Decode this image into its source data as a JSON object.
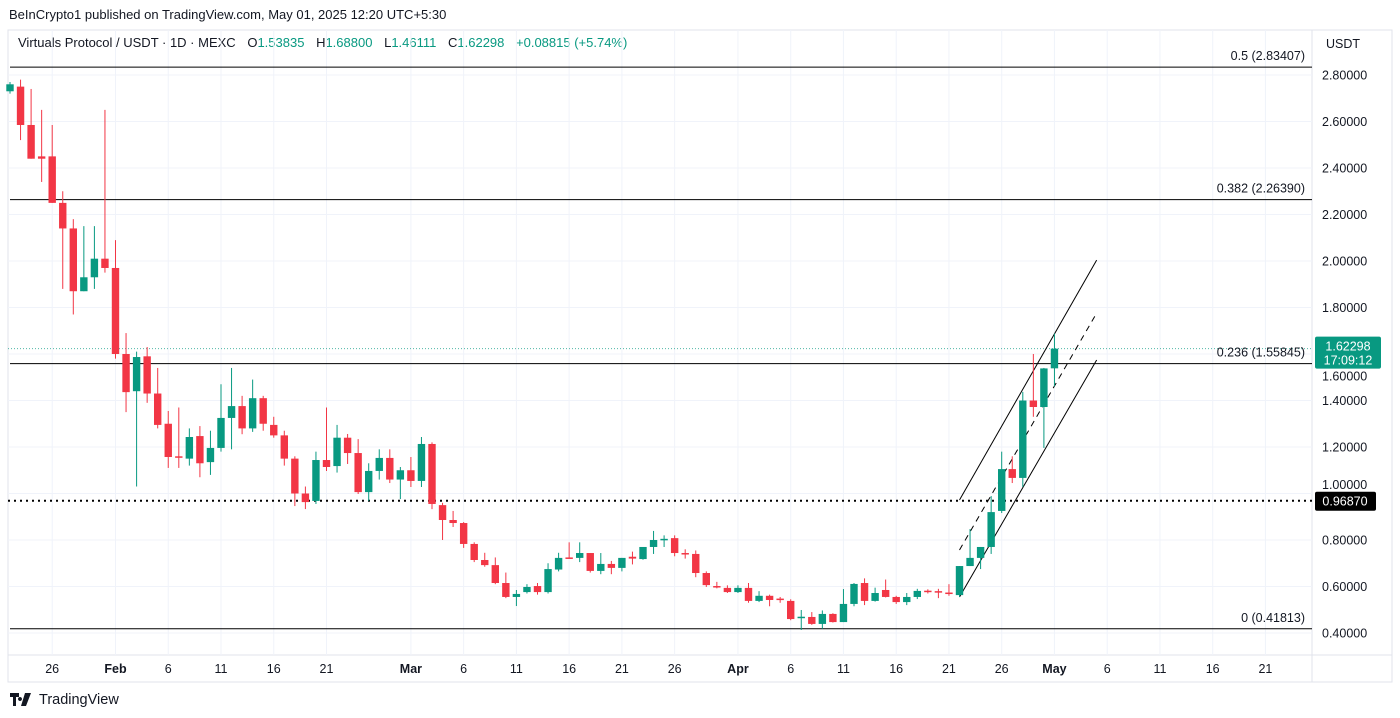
{
  "header": {
    "publisher_line": "BeInCrypto1 published on TradingView.com, May 01, 2025 12:20 UTC+5:30",
    "symbol": "Virtuals Protocol / USDT · 1D · MEXC",
    "open_label": "O",
    "open": "1.53835",
    "high_label": "H",
    "high": "1.68800",
    "low_label": "L",
    "low": "1.46111",
    "close_label": "C",
    "close": "1.62298",
    "change": "+0.08815 (+5.74%)",
    "currency": "USDT"
  },
  "footer": {
    "brand": "TradingView"
  },
  "colors": {
    "up": "#089981",
    "down": "#F23645",
    "last_price_bg": "#089981",
    "marker_bg": "#000000",
    "grid": "#f0f3fa"
  },
  "chart_data": {
    "type": "candlestick",
    "title": "",
    "xlabel": "",
    "ylabel": "",
    "ylim": [
      0.4,
      2.8
    ],
    "grid": true,
    "y_ticks": [
      "2.80000",
      "2.60000",
      "2.40000",
      "2.20000",
      "2.00000",
      "1.80000",
      "1.60000",
      "1.40000",
      "1.20000",
      "1.00000",
      "0.80000",
      "0.60000",
      "0.40000"
    ],
    "x_ticks": [
      {
        "date": "2025-01-26",
        "label": "26"
      },
      {
        "date": "2025-02-01",
        "label": "Feb",
        "month": true
      },
      {
        "date": "2025-02-06",
        "label": "6"
      },
      {
        "date": "2025-02-11",
        "label": "11"
      },
      {
        "date": "2025-02-16",
        "label": "16"
      },
      {
        "date": "2025-02-21",
        "label": "21"
      },
      {
        "date": "2025-03-01",
        "label": "Mar",
        "month": true
      },
      {
        "date": "2025-03-06",
        "label": "6"
      },
      {
        "date": "2025-03-11",
        "label": "11"
      },
      {
        "date": "2025-03-16",
        "label": "16"
      },
      {
        "date": "2025-03-21",
        "label": "21"
      },
      {
        "date": "2025-03-26",
        "label": "26"
      },
      {
        "date": "2025-04-01",
        "label": "Apr",
        "month": true
      },
      {
        "date": "2025-04-06",
        "label": "6"
      },
      {
        "date": "2025-04-11",
        "label": "11"
      },
      {
        "date": "2025-04-16",
        "label": "16"
      },
      {
        "date": "2025-04-21",
        "label": "21"
      },
      {
        "date": "2025-04-26",
        "label": "26"
      },
      {
        "date": "2025-05-01",
        "label": "May",
        "month": true
      },
      {
        "date": "2025-05-06",
        "label": "6"
      },
      {
        "date": "2025-05-11",
        "label": "11"
      },
      {
        "date": "2025-05-16",
        "label": "16"
      },
      {
        "date": "2025-05-21",
        "label": "21"
      }
    ],
    "ohlc_fields": [
      "date",
      "open",
      "high",
      "low",
      "close"
    ],
    "candles": [
      [
        "2025-01-22",
        2.73,
        2.77,
        2.72,
        2.76
      ],
      [
        "2025-01-23",
        2.75,
        2.78,
        2.52,
        2.585
      ],
      [
        "2025-01-24",
        2.585,
        2.74,
        2.44,
        2.44
      ],
      [
        "2025-01-25",
        2.45,
        2.65,
        2.34,
        2.44
      ],
      [
        "2025-01-26",
        2.45,
        2.585,
        2.25,
        2.25
      ],
      [
        "2025-01-27",
        2.25,
        2.3,
        1.88,
        2.14
      ],
      [
        "2025-01-28",
        2.14,
        2.18,
        1.77,
        1.87
      ],
      [
        "2025-01-29",
        1.87,
        2.15,
        1.87,
        1.93
      ],
      [
        "2025-01-30",
        1.93,
        2.15,
        1.88,
        2.01
      ],
      [
        "2025-01-31",
        2.01,
        2.65,
        1.95,
        1.97
      ],
      [
        "2025-02-01",
        1.97,
        2.09,
        1.58,
        1.6
      ],
      [
        "2025-02-02",
        1.6,
        1.69,
        1.35,
        1.436
      ],
      [
        "2025-02-03",
        1.44,
        1.61,
        1.03,
        1.587
      ],
      [
        "2025-02-04",
        1.59,
        1.63,
        1.39,
        1.43
      ],
      [
        "2025-02-05",
        1.43,
        1.54,
        1.28,
        1.295
      ],
      [
        "2025-02-06",
        1.3,
        1.355,
        1.11,
        1.157
      ],
      [
        "2025-02-07",
        1.16,
        1.37,
        1.11,
        1.155
      ],
      [
        "2025-02-08",
        1.15,
        1.28,
        1.12,
        1.243
      ],
      [
        "2025-02-09",
        1.247,
        1.29,
        1.07,
        1.13
      ],
      [
        "2025-02-10",
        1.135,
        1.27,
        1.08,
        1.196
      ],
      [
        "2025-02-11",
        1.196,
        1.47,
        1.18,
        1.325
      ],
      [
        "2025-02-12",
        1.325,
        1.54,
        1.19,
        1.376
      ],
      [
        "2025-02-13",
        1.376,
        1.42,
        1.255,
        1.28
      ],
      [
        "2025-02-14",
        1.28,
        1.49,
        1.265,
        1.41
      ],
      [
        "2025-02-15",
        1.41,
        1.42,
        1.27,
        1.3
      ],
      [
        "2025-02-16",
        1.295,
        1.33,
        1.24,
        1.25
      ],
      [
        "2025-02-17",
        1.25,
        1.27,
        1.12,
        1.15
      ],
      [
        "2025-02-18",
        1.15,
        1.16,
        0.946,
        1.0
      ],
      [
        "2025-02-19",
        1.0,
        1.03,
        0.933,
        0.963
      ],
      [
        "2025-02-20",
        0.968,
        1.18,
        0.955,
        1.144
      ],
      [
        "2025-02-21",
        1.144,
        1.37,
        1.097,
        1.114
      ],
      [
        "2025-02-22",
        1.118,
        1.295,
        1.09,
        1.24
      ],
      [
        "2025-02-23",
        1.24,
        1.256,
        1.127,
        1.174
      ],
      [
        "2025-02-24",
        1.174,
        1.234,
        0.998,
        1.006
      ],
      [
        "2025-02-25",
        1.006,
        1.13,
        0.968,
        1.097
      ],
      [
        "2025-02-26",
        1.097,
        1.19,
        1.06,
        1.153
      ],
      [
        "2025-02-27",
        1.153,
        1.19,
        1.045,
        1.06
      ],
      [
        "2025-02-28",
        1.06,
        1.114,
        0.976,
        1.1
      ],
      [
        "2025-03-01",
        1.1,
        1.157,
        1.028,
        1.054
      ],
      [
        "2025-03-02",
        1.054,
        1.243,
        1.028,
        1.213
      ],
      [
        "2025-03-03",
        1.213,
        1.22,
        0.933,
        0.955
      ],
      [
        "2025-03-04",
        0.95,
        0.96,
        0.8,
        0.886
      ],
      [
        "2025-03-05",
        0.886,
        0.925,
        0.856,
        0.873
      ],
      [
        "2025-03-06",
        0.873,
        0.877,
        0.766,
        0.783
      ],
      [
        "2025-03-07",
        0.783,
        0.79,
        0.705,
        0.714
      ],
      [
        "2025-03-08",
        0.714,
        0.745,
        0.685,
        0.692
      ],
      [
        "2025-03-09",
        0.692,
        0.725,
        0.61,
        0.615
      ],
      [
        "2025-03-10",
        0.615,
        0.66,
        0.55,
        0.555
      ],
      [
        "2025-03-11",
        0.555,
        0.585,
        0.516,
        0.568
      ],
      [
        "2025-03-12",
        0.576,
        0.61,
        0.57,
        0.598
      ],
      [
        "2025-03-13",
        0.602,
        0.615,
        0.565,
        0.576
      ],
      [
        "2025-03-14",
        0.576,
        0.7,
        0.57,
        0.675
      ],
      [
        "2025-03-15",
        0.673,
        0.745,
        0.665,
        0.723
      ],
      [
        "2025-03-16",
        0.725,
        0.79,
        0.72,
        0.722
      ],
      [
        "2025-03-17",
        0.723,
        0.79,
        0.705,
        0.744
      ],
      [
        "2025-03-18",
        0.744,
        0.744,
        0.66,
        0.667
      ],
      [
        "2025-03-19",
        0.667,
        0.744,
        0.653,
        0.697
      ],
      [
        "2025-03-20",
        0.697,
        0.71,
        0.653,
        0.68
      ],
      [
        "2025-03-21",
        0.68,
        0.723,
        0.665,
        0.723
      ],
      [
        "2025-03-22",
        0.728,
        0.75,
        0.695,
        0.72
      ],
      [
        "2025-03-23",
        0.718,
        0.77,
        0.715,
        0.77
      ],
      [
        "2025-03-24",
        0.77,
        0.839,
        0.74,
        0.8
      ],
      [
        "2025-03-25",
        0.8,
        0.82,
        0.77,
        0.805
      ],
      [
        "2025-03-26",
        0.808,
        0.82,
        0.73,
        0.744
      ],
      [
        "2025-03-27",
        0.744,
        0.76,
        0.72,
        0.74
      ],
      [
        "2025-03-28",
        0.74,
        0.755,
        0.64,
        0.658
      ],
      [
        "2025-03-29",
        0.658,
        0.665,
        0.598,
        0.606
      ],
      [
        "2025-03-30",
        0.602,
        0.62,
        0.592,
        0.598
      ],
      [
        "2025-03-31",
        0.594,
        0.605,
        0.572,
        0.576
      ],
      [
        "2025-04-01",
        0.576,
        0.605,
        0.572,
        0.594
      ],
      [
        "2025-04-02",
        0.594,
        0.615,
        0.53,
        0.538
      ],
      [
        "2025-04-03",
        0.538,
        0.58,
        0.533,
        0.56
      ],
      [
        "2025-04-04",
        0.56,
        0.565,
        0.515,
        0.542
      ],
      [
        "2025-04-05",
        0.548,
        0.555,
        0.53,
        0.546
      ],
      [
        "2025-04-06",
        0.538,
        0.545,
        0.455,
        0.46
      ],
      [
        "2025-04-07",
        0.468,
        0.499,
        0.413,
        0.47
      ],
      [
        "2025-04-08",
        0.469,
        0.49,
        0.435,
        0.439
      ],
      [
        "2025-04-09",
        0.439,
        0.497,
        0.418,
        0.482
      ],
      [
        "2025-04-10",
        0.482,
        0.485,
        0.445,
        0.447
      ],
      [
        "2025-04-11",
        0.447,
        0.589,
        0.447,
        0.525
      ],
      [
        "2025-04-12",
        0.525,
        0.615,
        0.515,
        0.611
      ],
      [
        "2025-04-13",
        0.615,
        0.635,
        0.52,
        0.538
      ],
      [
        "2025-04-14",
        0.538,
        0.595,
        0.535,
        0.572
      ],
      [
        "2025-04-15",
        0.585,
        0.63,
        0.553,
        0.555
      ],
      [
        "2025-04-16",
        0.555,
        0.56,
        0.525,
        0.533
      ],
      [
        "2025-04-17",
        0.533,
        0.572,
        0.52,
        0.555
      ],
      [
        "2025-04-18",
        0.555,
        0.59,
        0.546,
        0.581
      ],
      [
        "2025-04-19",
        0.582,
        0.588,
        0.57,
        0.578
      ],
      [
        "2025-04-20",
        0.58,
        0.59,
        0.55,
        0.576
      ],
      [
        "2025-04-21",
        0.574,
        0.61,
        0.56,
        0.572
      ],
      [
        "2025-04-22",
        0.563,
        0.688,
        0.555,
        0.688
      ],
      [
        "2025-04-23",
        0.688,
        0.847,
        0.688,
        0.723
      ],
      [
        "2025-04-24",
        0.723,
        0.77,
        0.675,
        0.77
      ],
      [
        "2025-04-25",
        0.77,
        0.989,
        0.74,
        0.92
      ],
      [
        "2025-04-26",
        0.925,
        1.18,
        0.916,
        1.105
      ],
      [
        "2025-04-27",
        1.105,
        1.16,
        1.045,
        1.067
      ],
      [
        "2025-04-28",
        1.067,
        1.437,
        1.028,
        1.4
      ],
      [
        "2025-04-29",
        1.4,
        1.6,
        1.33,
        1.372
      ],
      [
        "2025-04-30",
        1.372,
        1.54,
        1.196,
        1.538
      ],
      [
        "2025-05-01",
        1.53835,
        1.688,
        1.46111,
        1.62298
      ]
    ],
    "fib_levels": [
      {
        "price": 2.83407,
        "label": "0.5 (2.83407)"
      },
      {
        "price": 2.2639,
        "label": "0.382 (2.26390)"
      },
      {
        "price": 1.55845,
        "label": "0.236 (1.55845)"
      },
      {
        "price": 0.41813,
        "label": "0 (0.41813)"
      }
    ],
    "support_line": {
      "price": 0.9687,
      "label": "0.96870",
      "style": "dotted"
    },
    "last_price": {
      "price": 1.62298,
      "label": "1.62298",
      "countdown": "17:09:12"
    },
    "channel": [
      {
        "name": "upper",
        "style": "solid",
        "from": [
          "2025-04-22",
          0.972
        ],
        "to": [
          "2025-05-05",
          2.004
        ]
      },
      {
        "name": "middle",
        "style": "dashed",
        "from": [
          "2025-04-22",
          0.757
        ],
        "to": [
          "2025-05-05",
          1.776
        ]
      },
      {
        "name": "lower",
        "style": "solid",
        "from": [
          "2025-04-22",
          0.555
        ],
        "to": [
          "2025-05-05",
          1.574
        ]
      }
    ]
  }
}
